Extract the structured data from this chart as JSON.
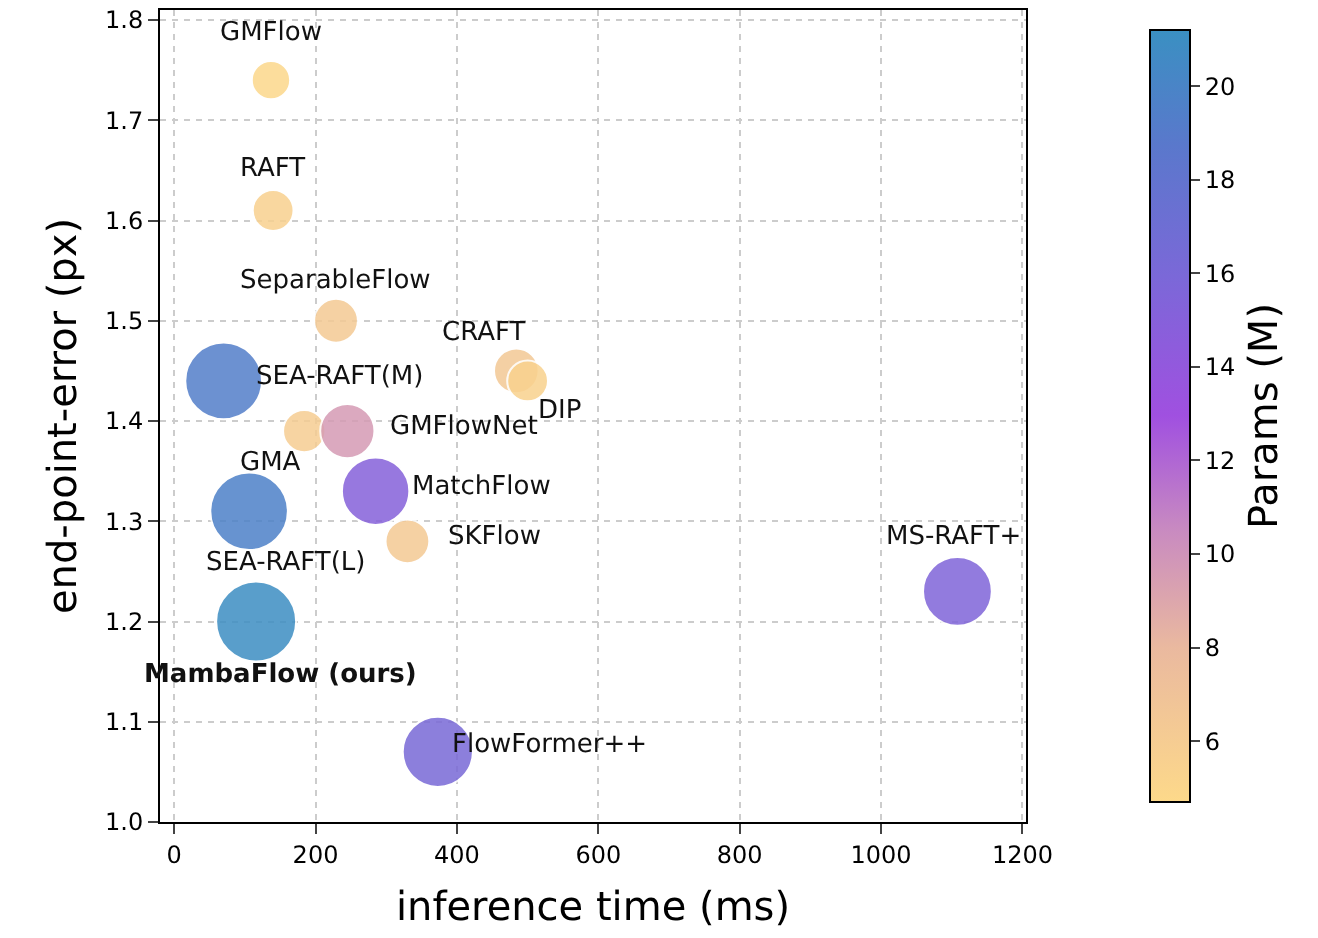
{
  "chart_data": {
    "type": "bubble",
    "xlabel": "inference time (ms)",
    "ylabel": "end-point-error (px)",
    "clabel": "Params (M)",
    "x": [
      137,
      140,
      229,
      70,
      484,
      500,
      184,
      245,
      106,
      285,
      330,
      116,
      1108,
      373
    ],
    "values": [
      1.74,
      1.61,
      1.5,
      1.44,
      1.45,
      1.44,
      1.39,
      1.39,
      1.31,
      1.33,
      1.28,
      1.2,
      1.23,
      1.07
    ],
    "cvalues": [
      4.8,
      5.5,
      6.2,
      19.3,
      6.5,
      5.4,
      5.9,
      9.6,
      19.7,
      15,
      6.3,
      21,
      15.5,
      16.1
    ],
    "sizes": [
      0.23,
      0.26,
      0.3,
      0.92,
      0.31,
      0.26,
      0.28,
      0.46,
      0.94,
      0.71,
      0.3,
      1,
      0.74,
      0.77
    ],
    "clim": [
      4.7,
      21.2
    ],
    "cticks": [
      6,
      8,
      10,
      12,
      14,
      16,
      18,
      20
    ],
    "xlim": [
      -20,
      1205
    ],
    "xticks": [
      0,
      200,
      400,
      600,
      800,
      1000,
      1200
    ],
    "ylim": [
      1.0,
      1.81
    ],
    "yticks": [
      {
        "value": 1.0,
        "label": "1.0"
      },
      1.1,
      1.2,
      1.3,
      1.4,
      1.5,
      1.6,
      1.7,
      1.8
    ],
    "grid": true,
    "annotations": [
      {
        "text": "GMFlow",
        "x": 137,
        "y": 1.74
      },
      {
        "text": "RAFT",
        "x": 140,
        "y": 1.61
      },
      {
        "text": "SeparableFlow",
        "x": 229,
        "y": 1.5
      },
      {
        "text": "CRAFT",
        "x": 484,
        "y": 1.45
      },
      {
        "text": "SEA-RAFT(M)",
        "x": 70,
        "y": 1.44
      },
      {
        "text": "DIP",
        "x": 500,
        "y": 1.44
      },
      {
        "text": "GMFlowNet",
        "x": 245,
        "y": 1.39
      },
      {
        "text": "GMA",
        "x": 184,
        "y": 1.39
      },
      {
        "text": "MatchFlow",
        "x": 285,
        "y": 1.33
      },
      {
        "text": "SKFlow",
        "x": 330,
        "y": 1.28
      },
      {
        "text": "SEA-RAFT(L)",
        "x": 106,
        "y": 1.31
      },
      {
        "text": "MambaFlow (ours)",
        "x": 116,
        "y": 1.2
      },
      {
        "text": "MS-RAFT+",
        "x": 1108,
        "y": 1.23
      },
      {
        "text": "FlowFormer++",
        "x": 373,
        "y": 1.07
      }
    ]
  }
}
